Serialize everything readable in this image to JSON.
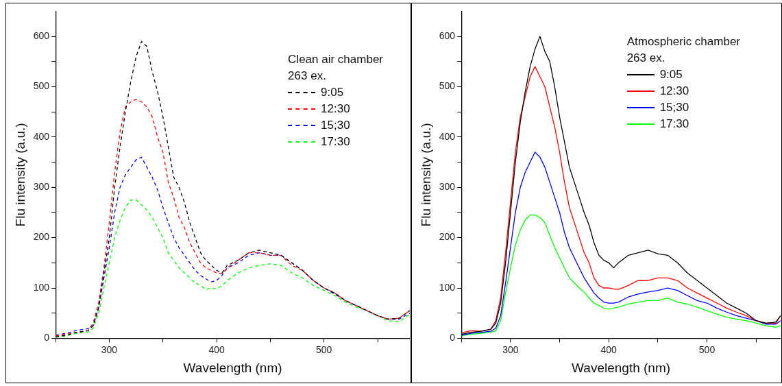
{
  "chart_data": [
    {
      "type": "line",
      "xlabel": "Wavelength (nm)",
      "ylabel": "Flu intensity (a.u.)",
      "legend_title": "Clean air chamber\n263 ex.",
      "legend": "top right",
      "line_style": "dashed",
      "marker": "none",
      "grid": false,
      "xlim": [
        250,
        580
      ],
      "ylim": [
        0,
        650
      ],
      "xticks": [
        {
          "value": 250,
          "label": null
        },
        300,
        {
          "value": 350,
          "label": null
        },
        400,
        {
          "value": 450,
          "label": null
        },
        500,
        {
          "value": 550,
          "label": null
        }
      ],
      "yticks": [
        0,
        {
          "value": 50,
          "label": null
        },
        100,
        {
          "value": 150,
          "label": null
        },
        200,
        {
          "value": 250,
          "label": null
        },
        300,
        {
          "value": 350,
          "label": null
        },
        400,
        {
          "value": 450,
          "label": null
        },
        500,
        {
          "value": 550,
          "label": null
        },
        600
      ],
      "x": [
        250,
        260,
        270,
        280,
        285,
        290,
        295,
        300,
        305,
        310,
        315,
        320,
        325,
        330,
        335,
        340,
        345,
        350,
        355,
        360,
        365,
        370,
        375,
        380,
        385,
        390,
        395,
        400,
        405,
        410,
        420,
        430,
        440,
        450,
        460,
        470,
        480,
        490,
        500,
        510,
        520,
        530,
        540,
        550,
        560,
        570,
        580
      ],
      "series": [
        {
          "name": "9:05",
          "color": "#000000",
          "values": [
            3,
            6,
            12,
            15,
            25,
            60,
            130,
            200,
            300,
            380,
            450,
            510,
            560,
            590,
            580,
            530,
            490,
            440,
            380,
            320,
            300,
            270,
            230,
            200,
            170,
            155,
            145,
            135,
            130,
            145,
            155,
            170,
            175,
            170,
            165,
            150,
            135,
            115,
            100,
            90,
            75,
            65,
            55,
            45,
            38,
            40,
            55
          ]
        },
        {
          "name": "12:30",
          "color": "#ff0000",
          "values": [
            5,
            8,
            12,
            15,
            30,
            70,
            140,
            230,
            330,
            410,
            460,
            470,
            475,
            470,
            460,
            440,
            400,
            370,
            310,
            280,
            240,
            220,
            190,
            170,
            150,
            140,
            135,
            130,
            128,
            140,
            155,
            170,
            170,
            165,
            165,
            145,
            135,
            115,
            100,
            90,
            75,
            65,
            55,
            45,
            38,
            40,
            55
          ]
        },
        {
          "name": "15;30",
          "color": "#0000ff",
          "values": [
            6,
            10,
            16,
            19,
            25,
            60,
            120,
            180,
            250,
            300,
            325,
            340,
            355,
            360,
            340,
            320,
            295,
            260,
            230,
            200,
            180,
            165,
            150,
            135,
            125,
            118,
            112,
            115,
            125,
            140,
            150,
            165,
            170,
            165,
            165,
            150,
            135,
            115,
            100,
            88,
            75,
            65,
            55,
            45,
            38,
            38,
            50
          ]
        },
        {
          "name": "17:30",
          "color": "#00ff00",
          "values": [
            2,
            5,
            10,
            12,
            20,
            50,
            100,
            150,
            200,
            235,
            260,
            275,
            275,
            265,
            255,
            240,
            220,
            200,
            170,
            155,
            140,
            130,
            120,
            110,
            105,
            97,
            100,
            98,
            105,
            115,
            130,
            140,
            145,
            148,
            145,
            130,
            120,
            105,
            95,
            85,
            72,
            62,
            55,
            45,
            35,
            33,
            48
          ]
        }
      ]
    },
    {
      "type": "line",
      "xlabel": "Wavelength (nm)",
      "ylabel": "Flu intensity (a.u.)",
      "legend_title": "Atmospheric chamber\n263 ex.",
      "legend": "top right",
      "line_style": "solid",
      "marker": "none",
      "grid": false,
      "xlim": [
        250,
        575
      ],
      "ylim": [
        0,
        650
      ],
      "xticks": [
        {
          "value": 250,
          "label": null
        },
        300,
        {
          "value": 350,
          "label": null
        },
        400,
        {
          "value": 450,
          "label": null
        },
        500,
        {
          "value": 550,
          "label": null
        }
      ],
      "yticks": [
        0,
        {
          "value": 50,
          "label": null
        },
        100,
        {
          "value": 150,
          "label": null
        },
        200,
        {
          "value": 250,
          "label": null
        },
        300,
        {
          "value": 350,
          "label": null
        },
        400,
        {
          "value": 450,
          "label": null
        },
        500,
        {
          "value": 550,
          "label": null
        },
        600
      ],
      "x": [
        250,
        260,
        270,
        280,
        285,
        290,
        295,
        300,
        305,
        310,
        315,
        320,
        325,
        330,
        335,
        340,
        345,
        350,
        355,
        360,
        365,
        370,
        375,
        380,
        385,
        390,
        395,
        400,
        405,
        410,
        420,
        430,
        440,
        450,
        460,
        470,
        480,
        490,
        500,
        510,
        520,
        530,
        540,
        550,
        560,
        570,
        575
      ],
      "series": [
        {
          "name": "9:05",
          "color": "#000000",
          "values": [
            8,
            12,
            14,
            18,
            30,
            70,
            150,
            250,
            350,
            430,
            490,
            540,
            575,
            600,
            570,
            550,
            500,
            440,
            390,
            340,
            310,
            280,
            250,
            225,
            190,
            165,
            155,
            150,
            140,
            150,
            165,
            170,
            175,
            168,
            165,
            150,
            130,
            115,
            100,
            85,
            70,
            60,
            50,
            35,
            30,
            32,
            45
          ]
        },
        {
          "name": "12:30",
          "color": "#ff0000",
          "values": [
            11,
            15,
            14,
            18,
            35,
            80,
            170,
            270,
            370,
            440,
            480,
            520,
            540,
            520,
            500,
            460,
            420,
            370,
            310,
            260,
            230,
            200,
            170,
            150,
            120,
            105,
            100,
            100,
            98,
            97,
            105,
            115,
            115,
            120,
            120,
            115,
            100,
            90,
            80,
            70,
            60,
            52,
            45,
            35,
            30,
            30,
            45
          ]
        },
        {
          "name": "15;30",
          "color": "#0000ff",
          "values": [
            6,
            10,
            12,
            14,
            20,
            45,
            110,
            180,
            250,
            300,
            330,
            350,
            370,
            360,
            340,
            310,
            280,
            250,
            210,
            180,
            160,
            140,
            120,
            105,
            90,
            80,
            72,
            70,
            70,
            72,
            82,
            88,
            92,
            95,
            100,
            95,
            85,
            75,
            70,
            60,
            52,
            45,
            40,
            35,
            28,
            28,
            35
          ]
        },
        {
          "name": "17:30",
          "color": "#00ff00",
          "values": [
            5,
            8,
            10,
            12,
            15,
            35,
            90,
            140,
            185,
            215,
            235,
            245,
            245,
            240,
            230,
            205,
            180,
            160,
            140,
            120,
            110,
            100,
            92,
            80,
            70,
            65,
            60,
            58,
            60,
            62,
            68,
            72,
            75,
            75,
            80,
            72,
            68,
            62,
            55,
            48,
            42,
            38,
            35,
            30,
            25,
            22,
            25
          ]
        }
      ]
    }
  ]
}
